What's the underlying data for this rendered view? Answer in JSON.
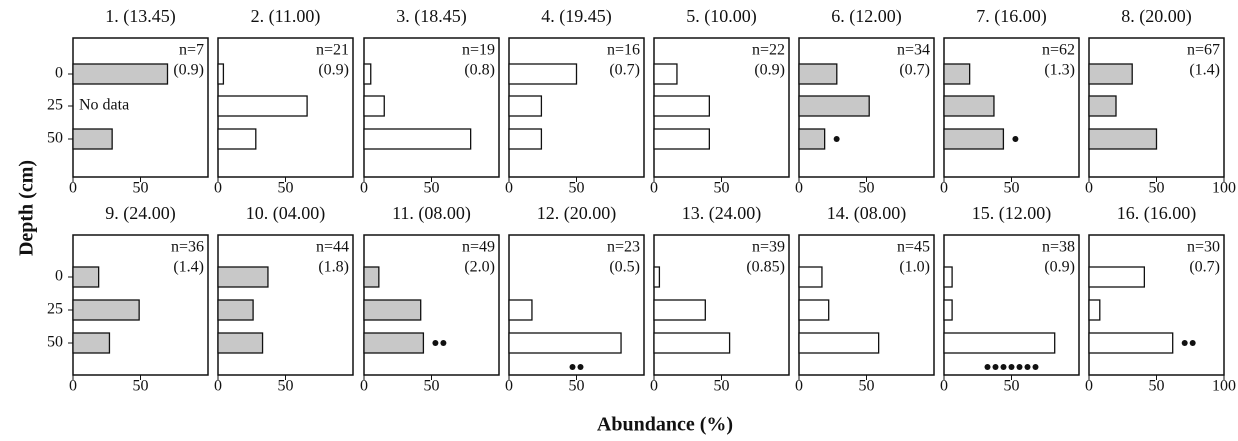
{
  "chart_data": {
    "type": "bar",
    "ylabel": "Depth (cm)",
    "xlabel": "Abundance (%)",
    "categories": [
      "0",
      "25",
      "50"
    ],
    "xlim": [
      0,
      100
    ],
    "panels": [
      {
        "title": "1. (13.45)",
        "n_label": "n=7",
        "sub_label": "(0.9)",
        "color": "#c8c8c8",
        "values": [
          70,
          null,
          29
        ],
        "note": "No data",
        "xticks": [
          0,
          50
        ]
      },
      {
        "title": "2. (11.00)",
        "n_label": "n=21",
        "sub_label": "(0.9)",
        "color": "#ffffff",
        "values": [
          4,
          66,
          28
        ],
        "xticks": [
          0,
          50
        ]
      },
      {
        "title": "3. (18.45)",
        "n_label": "n=19",
        "sub_label": "(0.8)",
        "color": "#ffffff",
        "values": [
          5,
          15,
          79
        ],
        "xticks": [
          0,
          50
        ]
      },
      {
        "title": "4. (19.45)",
        "n_label": "n=16",
        "sub_label": "(0.7)",
        "color": "#ffffff",
        "values": [
          50,
          24,
          24
        ],
        "xticks": [
          0,
          50
        ]
      },
      {
        "title": "5. (10.00)",
        "n_label": "n=22",
        "sub_label": "(0.9)",
        "color": "#ffffff",
        "values": [
          17,
          41,
          41
        ],
        "xticks": [
          0,
          50
        ]
      },
      {
        "title": "6. (12.00)",
        "n_label": "n=34",
        "sub_label": "(0.7)",
        "color": "#c8c8c8",
        "values": [
          28,
          52,
          19
        ],
        "dots": 1,
        "xticks": [
          0,
          50
        ]
      },
      {
        "title": "7. (16.00)",
        "n_label": "n=62",
        "sub_label": "(1.3)",
        "color": "#c8c8c8",
        "values": [
          19,
          37,
          44
        ],
        "dots": 1,
        "xticks": [
          0,
          50
        ]
      },
      {
        "title": "8. (20.00)",
        "n_label": "n=67",
        "sub_label": "(1.4)",
        "color": "#c8c8c8",
        "values": [
          32,
          20,
          50
        ],
        "xticks": [
          0,
          50,
          100
        ]
      },
      {
        "title": "9. (24.00)",
        "n_label": "n=36",
        "sub_label": "(1.4)",
        "color": "#c8c8c8",
        "values": [
          19,
          49,
          27
        ],
        "xticks": [
          0,
          50
        ]
      },
      {
        "title": "10. (04.00)",
        "n_label": "n=44",
        "sub_label": "(1.8)",
        "color": "#c8c8c8",
        "values": [
          37,
          26,
          33
        ],
        "xticks": [
          0,
          50
        ]
      },
      {
        "title": "11. (08.00)",
        "n_label": "n=49",
        "sub_label": "(2.0)",
        "color": "#c8c8c8",
        "values": [
          11,
          42,
          44
        ],
        "dots": 2,
        "xticks": [
          0,
          50
        ]
      },
      {
        "title": "12. (20.00)",
        "n_label": "n=23",
        "sub_label": "(0.5)",
        "color": "#ffffff",
        "values": [
          0,
          17,
          83
        ],
        "dots": 2,
        "xticks": [
          0,
          50
        ]
      },
      {
        "title": "13. (24.00)",
        "n_label": "n=39",
        "sub_label": "(0.85)",
        "color": "#ffffff",
        "values": [
          4,
          38,
          56
        ],
        "xticks": [
          0,
          50
        ]
      },
      {
        "title": "14. (08.00)",
        "n_label": "n=45",
        "sub_label": "(1.0)",
        "color": "#ffffff",
        "values": [
          17,
          22,
          59
        ],
        "xticks": [
          0,
          50
        ]
      },
      {
        "title": "15. (12.00)",
        "n_label": "n=38",
        "sub_label": "(0.9)",
        "color": "#ffffff",
        "values": [
          6,
          6,
          82
        ],
        "dots": 7,
        "xticks": [
          0,
          50
        ]
      },
      {
        "title": "16. (16.00)",
        "n_label": "n=30",
        "sub_label": "(0.7)",
        "color": "#ffffff",
        "values": [
          41,
          8,
          62
        ],
        "dots": 2,
        "xticks": [
          0,
          50,
          100
        ]
      }
    ]
  }
}
